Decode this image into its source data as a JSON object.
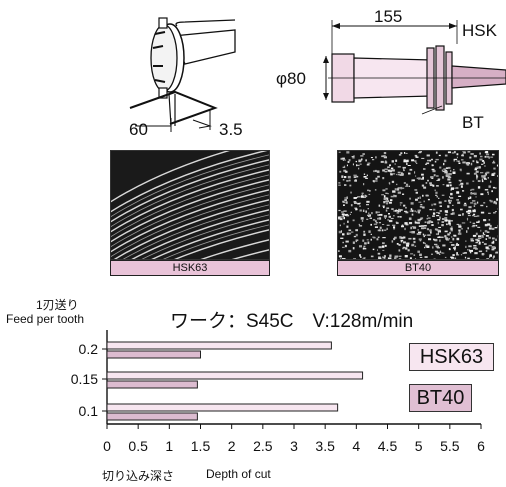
{
  "colors": {
    "hsk_fill": "#f7e6f0",
    "bt_fill": "#dcbcd0",
    "caption_fill": "#e9c3d8",
    "legend_hsk_fill": "#f7e6f0",
    "legend_bt_fill": "#e0bfd3"
  },
  "diagram_left": {
    "dim_width": "60",
    "dim_offset": "3.5"
  },
  "diagram_right": {
    "dim_length": "155",
    "dim_diameter": "φ80",
    "label_hsk": "HSK",
    "label_bt": "BT"
  },
  "photos": {
    "hsk_caption": "HSK63",
    "bt_caption": "BT40"
  },
  "legend": {
    "hsk": "HSK63",
    "bt": "BT40"
  },
  "chart_data": {
    "type": "bar",
    "orientation": "horizontal",
    "title": "ワーク：S45C　V:128m/min",
    "ylabel_ja": "1刃送り",
    "ylabel_en": "Feed per tooth",
    "xlabel_ja": "切り込み深さ",
    "xlabel_en": "Depth of cut",
    "categories": [
      "0.2",
      "0.15",
      "0.1"
    ],
    "series": [
      {
        "name": "HSK63",
        "values": [
          3.6,
          4.1,
          3.7
        ]
      },
      {
        "name": "BT40",
        "values": [
          1.5,
          1.45,
          1.45
        ]
      }
    ],
    "xlim": [
      0,
      6
    ],
    "xticks": [
      "0",
      "0.5",
      "1",
      "1.5",
      "2",
      "2.5",
      "3",
      "3.5",
      "4",
      "4.5",
      "5",
      "5.5",
      "6"
    ],
    "grid": false,
    "legend_position": "right"
  }
}
